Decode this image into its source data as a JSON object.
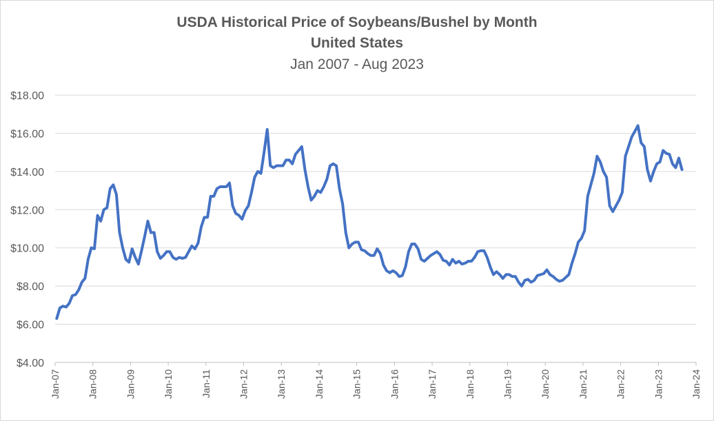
{
  "chart_data": {
    "type": "line",
    "title": "USDA Historical Price of Soybeans/Bushel by Month",
    "subtitle": "United States",
    "date_range": "Jan 2007 - Aug 2023",
    "xlabel": "",
    "ylabel": "",
    "ylim": [
      4,
      18
    ],
    "y_ticks": [
      4,
      6,
      8,
      10,
      12,
      14,
      16,
      18
    ],
    "y_tick_labels": [
      "$4.00",
      "$6.00",
      "$8.00",
      "$10.00",
      "$12.00",
      "$14.00",
      "$16.00",
      "$18.00"
    ],
    "x_tick_labels": [
      "Jan-07",
      "Jan-08",
      "Jan-09",
      "Jan-10",
      "Jan-11",
      "Jan-12",
      "Jan-13",
      "Jan-14",
      "Jan-15",
      "Jan-16",
      "Jan-17",
      "Jan-18",
      "Jan-19",
      "Jan-20",
      "Jan-21",
      "Jan-22",
      "Jan-23",
      "Jan-24"
    ],
    "grid": "horizontal",
    "legend": "none",
    "line_color": "#4472c4",
    "series": [
      {
        "start": "Jan-07",
        "frequency": "monthly",
        "values": [
          6.3,
          6.85,
          6.95,
          6.9,
          7.1,
          7.5,
          7.55,
          7.8,
          8.2,
          8.4,
          9.4,
          10.0,
          9.95,
          11.7,
          11.4,
          12.0,
          12.1,
          13.1,
          13.3,
          12.8,
          10.8,
          10.0,
          9.4,
          9.25,
          9.95,
          9.5,
          9.15,
          9.85,
          10.6,
          11.4,
          10.8,
          10.8,
          9.8,
          9.45,
          9.6,
          9.8,
          9.8,
          9.5,
          9.4,
          9.5,
          9.45,
          9.5,
          9.8,
          10.1,
          9.95,
          10.25,
          11.1,
          11.6,
          11.6,
          12.7,
          12.7,
          13.1,
          13.2,
          13.2,
          13.2,
          13.4,
          12.2,
          11.8,
          11.7,
          11.5,
          11.95,
          12.2,
          12.9,
          13.7,
          14.0,
          13.9,
          15.0,
          16.2,
          14.3,
          14.2,
          14.3,
          14.3,
          14.3,
          14.6,
          14.6,
          14.4,
          14.9,
          15.1,
          15.3,
          14.1,
          13.2,
          12.5,
          12.7,
          13.0,
          12.9,
          13.2,
          13.6,
          14.3,
          14.4,
          14.3,
          13.1,
          12.3,
          10.8,
          10.0,
          10.2,
          10.3,
          10.3,
          9.9,
          9.85,
          9.7,
          9.6,
          9.6,
          9.95,
          9.7,
          9.1,
          8.8,
          8.7,
          8.8,
          8.7,
          8.5,
          8.55,
          9.0,
          9.8,
          10.2,
          10.2,
          9.95,
          9.4,
          9.3,
          9.45,
          9.6,
          9.7,
          9.8,
          9.65,
          9.35,
          9.3,
          9.1,
          9.4,
          9.2,
          9.3,
          9.15,
          9.2,
          9.3,
          9.3,
          9.5,
          9.8,
          9.85,
          9.85,
          9.5,
          9.0,
          8.6,
          8.75,
          8.6,
          8.4,
          8.6,
          8.6,
          8.5,
          8.5,
          8.2,
          8.0,
          8.3,
          8.35,
          8.2,
          8.3,
          8.55,
          8.6,
          8.65,
          8.85,
          8.6,
          8.5,
          8.35,
          8.25,
          8.3,
          8.45,
          8.6,
          9.2,
          9.7,
          10.3,
          10.5,
          10.9,
          12.7,
          13.3,
          13.9,
          14.8,
          14.5,
          14.0,
          13.7,
          12.2,
          11.9,
          12.2,
          12.5,
          12.9,
          14.8,
          15.3,
          15.8,
          16.1,
          16.4,
          15.5,
          15.3,
          14.1,
          13.5,
          14.0,
          14.4,
          14.5,
          15.1,
          14.95,
          14.9,
          14.4,
          14.2,
          14.7,
          14.1
        ]
      }
    ]
  }
}
